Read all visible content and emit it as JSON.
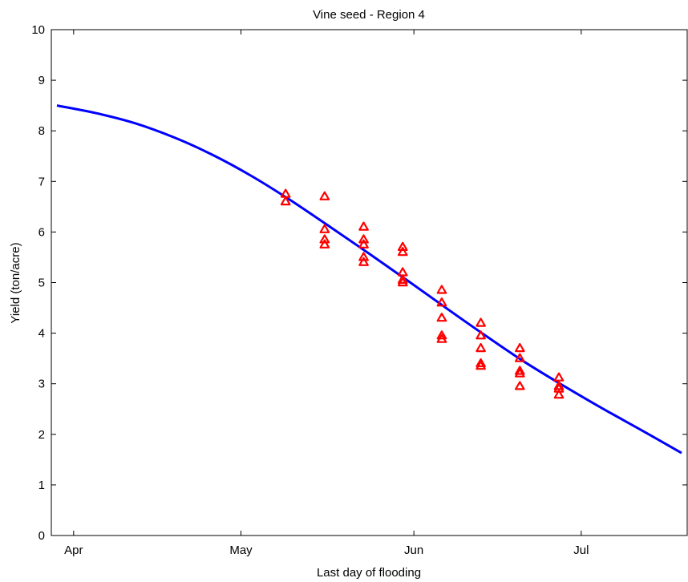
{
  "chart_data": {
    "type": "scatter",
    "title": "Vine seed - Region 4",
    "xlabel": "Last day of flooding",
    "ylabel": "Yield (ton/acre)",
    "x_axis_type": "date",
    "xlim": [
      "2000-03-28",
      "2000-07-20"
    ],
    "ylim": [
      0,
      10
    ],
    "x_ticks": [
      {
        "label": "Apr",
        "date": "2000-04-01"
      },
      {
        "label": "May",
        "date": "2000-05-01"
      },
      {
        "label": "Jun",
        "date": "2000-06-01"
      },
      {
        "label": "Jul",
        "date": "2000-07-01"
      }
    ],
    "y_ticks": [
      0,
      1,
      2,
      3,
      4,
      5,
      6,
      7,
      8,
      9,
      10
    ],
    "grid": false,
    "legend": "none",
    "colors": {
      "points": "#ff0000",
      "curve": "#0000ff",
      "axes": "#000000"
    },
    "series": [
      {
        "type": "scatter",
        "marker": "triangle",
        "points": [
          {
            "x": "2000-05-09",
            "y": 6.75
          },
          {
            "x": "2000-05-09",
            "y": 6.6
          },
          {
            "x": "2000-05-16",
            "y": 6.7
          },
          {
            "x": "2000-05-16",
            "y": 6.05
          },
          {
            "x": "2000-05-16",
            "y": 5.85
          },
          {
            "x": "2000-05-16",
            "y": 5.75
          },
          {
            "x": "2000-05-23",
            "y": 6.1
          },
          {
            "x": "2000-05-23",
            "y": 5.85
          },
          {
            "x": "2000-05-23",
            "y": 5.75
          },
          {
            "x": "2000-05-23",
            "y": 5.5
          },
          {
            "x": "2000-05-23",
            "y": 5.4
          },
          {
            "x": "2000-05-30",
            "y": 5.7
          },
          {
            "x": "2000-05-30",
            "y": 5.6
          },
          {
            "x": "2000-05-30",
            "y": 5.2
          },
          {
            "x": "2000-05-30",
            "y": 5.05
          },
          {
            "x": "2000-05-30",
            "y": 5.0
          },
          {
            "x": "2000-06-06",
            "y": 4.85
          },
          {
            "x": "2000-06-06",
            "y": 4.6
          },
          {
            "x": "2000-06-06",
            "y": 4.3
          },
          {
            "x": "2000-06-06",
            "y": 3.95
          },
          {
            "x": "2000-06-06",
            "y": 3.88
          },
          {
            "x": "2000-06-13",
            "y": 4.2
          },
          {
            "x": "2000-06-13",
            "y": 3.95
          },
          {
            "x": "2000-06-13",
            "y": 3.7
          },
          {
            "x": "2000-06-13",
            "y": 3.4
          },
          {
            "x": "2000-06-13",
            "y": 3.35
          },
          {
            "x": "2000-06-20",
            "y": 3.7
          },
          {
            "x": "2000-06-20",
            "y": 3.5
          },
          {
            "x": "2000-06-20",
            "y": 3.25
          },
          {
            "x": "2000-06-20",
            "y": 3.2
          },
          {
            "x": "2000-06-20",
            "y": 2.95
          },
          {
            "x": "2000-06-27",
            "y": 3.12
          },
          {
            "x": "2000-06-27",
            "y": 2.95
          },
          {
            "x": "2000-06-27",
            "y": 2.9
          },
          {
            "x": "2000-06-27",
            "y": 2.78
          }
        ]
      },
      {
        "type": "line",
        "points": [
          {
            "x": "2000-03-29",
            "y": 8.5
          },
          {
            "x": "2000-04-05",
            "y": 8.35
          },
          {
            "x": "2000-04-12",
            "y": 8.15
          },
          {
            "x": "2000-04-19",
            "y": 7.87
          },
          {
            "x": "2000-04-26",
            "y": 7.52
          },
          {
            "x": "2000-05-03",
            "y": 7.1
          },
          {
            "x": "2000-05-10",
            "y": 6.62
          },
          {
            "x": "2000-05-17",
            "y": 6.1
          },
          {
            "x": "2000-05-24",
            "y": 5.57
          },
          {
            "x": "2000-05-31",
            "y": 5.03
          },
          {
            "x": "2000-06-07",
            "y": 4.48
          },
          {
            "x": "2000-06-14",
            "y": 3.94
          },
          {
            "x": "2000-06-21",
            "y": 3.42
          },
          {
            "x": "2000-06-28",
            "y": 2.95
          },
          {
            "x": "2000-07-05",
            "y": 2.5
          },
          {
            "x": "2000-07-12",
            "y": 2.07
          },
          {
            "x": "2000-07-19",
            "y": 1.63
          }
        ]
      }
    ]
  }
}
